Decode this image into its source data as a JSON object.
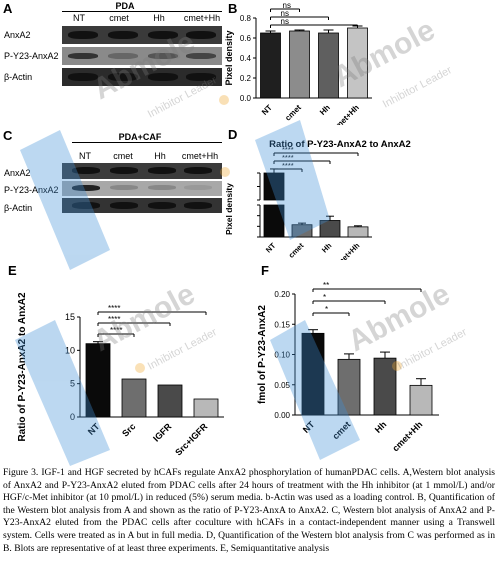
{
  "panels": {
    "A": {
      "letter": "A",
      "condition": "PDA",
      "lanes": [
        "NT",
        "cmet",
        "Hh",
        "cmet+Hh"
      ],
      "rows": [
        "AnxA2",
        "P-Y23-AnxA2",
        "β-Actin"
      ]
    },
    "B": {
      "letter": "B",
      "ylabel": "Pixel density",
      "categories": [
        "NT",
        "cmet",
        "Hh",
        "cmet+Hh"
      ],
      "values": [
        0.65,
        0.67,
        0.65,
        0.7
      ],
      "errors": [
        0.02,
        0.01,
        0.03,
        0.02
      ],
      "ylim": [
        0,
        0.8
      ],
      "yticks": [
        "0.0",
        "0.2",
        "0.4",
        "0.6",
        "0.8"
      ],
      "sig": [
        "ns",
        "ns",
        "ns"
      ]
    },
    "C": {
      "letter": "C",
      "condition": "PDA+CAF",
      "lanes": [
        "NT",
        "cmet",
        "Hh",
        "cmet+Hh"
      ],
      "rows": [
        "AnxA2",
        "P-Y23-AnxA2",
        "β-Actin"
      ]
    },
    "D": {
      "letter": "D",
      "title": "Ratio of P-Y23-AnxA2 to AnxA2",
      "ylabel": "Pixel density",
      "categories": [
        "NT",
        "cmet",
        "Hh",
        "cmet+Hh"
      ],
      "values": [
        0.8,
        0.023,
        0.031,
        0.019
      ],
      "errors": [
        0.03,
        0.003,
        0.008,
        0.002
      ],
      "yticks_top": [
        "0.6",
        "0.7",
        "0.8"
      ],
      "yticks_bottom": [
        "0.00",
        "0.02",
        "0.04",
        "0.06"
      ],
      "sig": [
        "****",
        "****",
        "****"
      ]
    },
    "E": {
      "letter": "E",
      "ylabel": "Ratio of P-Y23-AnxA2 to AnxA2",
      "categories": [
        "NT",
        "Src",
        "IGFR",
        "Src+IGFR"
      ],
      "values": [
        11.0,
        5.7,
        4.8,
        2.7
      ],
      "errors": [
        0.3,
        0.0,
        0.0,
        0.0
      ],
      "ylim": [
        0,
        15
      ],
      "yticks": [
        "0",
        "5",
        "10",
        "15"
      ],
      "sig": [
        "****",
        "****",
        "****"
      ]
    },
    "F": {
      "letter": "F",
      "ylabel": "fmol of P-Y23-AnxA2",
      "categories": [
        "NT",
        "cmet",
        "Hh",
        "cmet+Hh"
      ],
      "values": [
        0.135,
        0.092,
        0.094,
        0.049
      ],
      "errors": [
        0.006,
        0.009,
        0.01,
        0.011
      ],
      "ylim": [
        0,
        0.2
      ],
      "yticks": [
        "0.00",
        "0.05",
        "0.10",
        "0.15",
        "0.20"
      ],
      "sig": [
        "*",
        "*",
        "**"
      ]
    }
  },
  "chart_data": [
    {
      "type": "bar",
      "categories": [
        "NT",
        "cmet",
        "Hh",
        "cmet+Hh"
      ],
      "values": [
        0.65,
        0.67,
        0.65,
        0.7
      ],
      "ylabel": "Pixel density",
      "ylim": [
        0,
        0.8
      ],
      "annotations": [
        "ns",
        "ns",
        "ns"
      ]
    },
    {
      "type": "bar",
      "categories": [
        "NT",
        "cmet",
        "Hh",
        "cmet+Hh"
      ],
      "values": [
        0.8,
        0.023,
        0.031,
        0.019
      ],
      "title": "Ratio of P-Y23-AnxA2 to AnxA2",
      "ylabel": "Pixel density",
      "annotations": [
        "****",
        "****",
        "****"
      ]
    },
    {
      "type": "bar",
      "categories": [
        "NT",
        "Src",
        "IGFR",
        "Src+IGFR"
      ],
      "values": [
        11.0,
        5.7,
        4.8,
        2.7
      ],
      "ylabel": "Ratio of P-Y23-AnxA2 to AnxA2",
      "ylim": [
        0,
        15
      ],
      "annotations": [
        "****",
        "****",
        "****"
      ]
    },
    {
      "type": "bar",
      "categories": [
        "NT",
        "cmet",
        "Hh",
        "cmet+Hh"
      ],
      "values": [
        0.135,
        0.092,
        0.094,
        0.049
      ],
      "ylabel": "fmol of P-Y23-AnxA2",
      "ylim": [
        0,
        0.2
      ],
      "annotations": [
        "*",
        "*",
        "**"
      ]
    }
  ],
  "watermark": {
    "brand": "Abmole",
    "tagline": "Inhibitor Leader"
  },
  "caption": "Figure 3. IGF-1 and HGF secreted by hCAFs regulate AnxA2 phosphorylation of humanPDAC cells. A,Western blot analysis of AnxA2 and P-Y23-AnxA2 eluted from PDAC cells after 24 hours of treatment with the Hh inhibitor (at 1 mmol/L) and/or HGF/c-Met inhibitor (at 10 pmol/L) in reduced (5%) serum media. b-Actin was used as a loading control. B, Quantification of the Western blot analysis from A and shown as the ratio of P-Y23-AnxA to AnxA2. C, Western blot analysis of AnxA2 and P-Y23-AnxA2 eluted from the PDAC cells after coculture with hCAFs in a contact-independent manner using a Transwell system. Cells were treated as in A but in full media. D, Quantification of the Western blot analysis from C was performed as in B. Blots are representative of at least three experiments. E, Semiquantitative analysis"
}
